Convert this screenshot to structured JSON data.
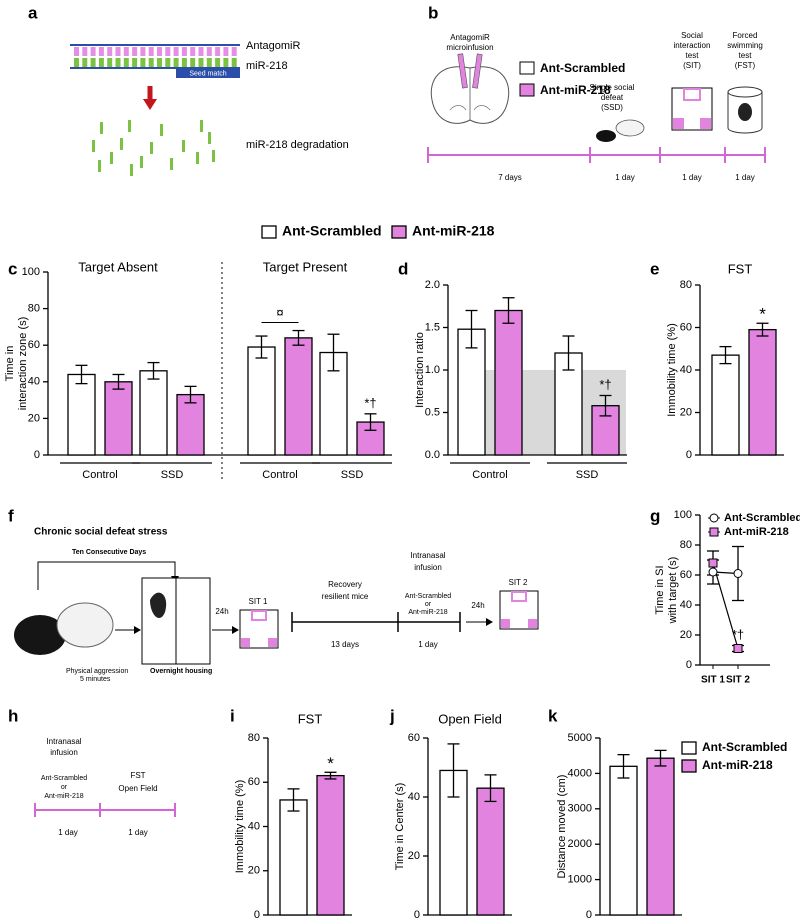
{
  "diagrams": {
    "a": {
      "label": "a",
      "strand_labels": [
        "AntagomiR",
        "miR-218"
      ],
      "seed": "Seed match",
      "result": "miR-218 degradation"
    },
    "b": {
      "label": "b",
      "infusion": [
        "AntagomiR",
        "microinfusion"
      ],
      "legend": [
        "Ant-Scrambled",
        "Ant-miR-218"
      ],
      "defeat": [
        "Single social",
        "defeat",
        "(SSD)"
      ],
      "sit": [
        "Social",
        "interaction",
        "test",
        "(SIT)"
      ],
      "fst": [
        "Forced",
        "swimming",
        "test",
        "(FST)"
      ],
      "durations": [
        "7 days",
        "1 day",
        "1 day",
        "1 day"
      ]
    },
    "f": {
      "label": "f",
      "title": "Chronic social defeat stress",
      "repeat": "Ten Consecutive Days",
      "aggression": [
        "Physical aggression",
        "5 minutes"
      ],
      "housing": "Overnight housing",
      "waits": [
        "24h",
        "24h"
      ],
      "tests": [
        "SIT 1",
        "SIT 2"
      ],
      "recovery": [
        "Recovery",
        "resilient mice"
      ],
      "recovery_duration": "13 days",
      "infusion": [
        "Intranasal",
        "infusion"
      ],
      "treatments": [
        "Ant-Scrambled",
        "or",
        "Ant-miR-218"
      ],
      "infusion_duration": "1 day"
    },
    "h": {
      "label": "h",
      "infusion": [
        "Intranasal",
        "infusion"
      ],
      "treatments": [
        "Ant-Scrambled",
        "or",
        "Ant-miR-218"
      ],
      "tests": [
        "FST",
        "Open Field"
      ],
      "durations": [
        "1 day",
        "1 day"
      ]
    }
  },
  "chart_data": [
    {
      "type": "bar",
      "label": "c",
      "facet_titles": [
        "Target Absent",
        "Target Present"
      ],
      "ylabel": [
        "Time in",
        "interaction zone (s)"
      ],
      "categories": [
        "Control",
        "SSD",
        "Control",
        "SSD"
      ],
      "ylim": [
        0,
        100
      ],
      "yticks": [
        0,
        20,
        40,
        60,
        80,
        100
      ],
      "series": [
        {
          "name": "Ant-Scrambled",
          "color": "#ffffff",
          "values": [
            44,
            46,
            59,
            56
          ],
          "errors": [
            5,
            4.5,
            6,
            10
          ]
        },
        {
          "name": "Ant-miR-218",
          "color": "#e283e0",
          "values": [
            40,
            33,
            64,
            18
          ],
          "errors": [
            4,
            4.5,
            4,
            4.5
          ]
        }
      ],
      "annotations": [
        {
          "text": "¤",
          "category": 2
        },
        {
          "text": "*†",
          "category": 3,
          "series": 1
        }
      ]
    },
    {
      "type": "bar",
      "label": "d",
      "ylabel": "Interaction ratio",
      "categories": [
        "Control",
        "SSD"
      ],
      "ylim": [
        0,
        2
      ],
      "yticks": [
        {
          "value": 0,
          "label": "0.0"
        },
        {
          "value": 0.5,
          "label": "0.5"
        },
        {
          "value": 1,
          "label": "1.0"
        },
        {
          "value": 1.5,
          "label": "1.5"
        },
        {
          "value": 2,
          "label": "2.0"
        }
      ],
      "reference": 1,
      "series": [
        {
          "color": "#ffffff",
          "values": [
            1.48,
            1.2
          ],
          "errors": [
            0.22,
            0.2
          ]
        },
        {
          "color": "#e283e0",
          "values": [
            1.7,
            0.58
          ],
          "errors": [
            0.15,
            0.12
          ]
        }
      ],
      "annotations": [
        {
          "text": "*†",
          "category": 1,
          "series": 1
        }
      ]
    },
    {
      "type": "bar",
      "label": "e",
      "title": "FST",
      "ylabel": "Immobility time (%)",
      "categories": [
        null
      ],
      "ylim": [
        0,
        80
      ],
      "yticks": [
        0,
        20,
        40,
        60,
        80
      ],
      "series": [
        {
          "color": "#ffffff",
          "values": [
            47
          ],
          "errors": [
            4
          ]
        },
        {
          "color": "#e283e0",
          "values": [
            59
          ],
          "errors": [
            3
          ]
        }
      ],
      "annotations": [
        {
          "text": "*",
          "category": 0,
          "series": 1
        }
      ]
    },
    {
      "type": "line",
      "label": "g",
      "ylabel": [
        "Time in SI",
        "with target (s)"
      ],
      "categories": [
        "SIT 1",
        "SIT 2"
      ],
      "ylim": [
        0,
        100
      ],
      "yticks": [
        0,
        20,
        40,
        60,
        80,
        100
      ],
      "series": [
        {
          "name": "Ant-Scrambled",
          "color": "#ffffff",
          "marker": "circle",
          "values": [
            62,
            61
          ],
          "errors": [
            8,
            18
          ]
        },
        {
          "name": "Ant-miR-218",
          "color": "#e283e0",
          "marker": "square",
          "values": [
            68,
            11
          ],
          "errors": [
            8,
            2
          ]
        }
      ],
      "annotations": [
        {
          "text": "*†",
          "category": 1,
          "series": 1
        }
      ]
    },
    {
      "type": "bar",
      "label": "i",
      "title": "FST",
      "ylabel": "Immobility time (%)",
      "categories": [
        null
      ],
      "ylim": [
        0,
        80
      ],
      "yticks": [
        0,
        20,
        40,
        60,
        80
      ],
      "series": [
        {
          "color": "#ffffff",
          "values": [
            52
          ],
          "errors": [
            5
          ]
        },
        {
          "color": "#e283e0",
          "values": [
            63
          ],
          "errors": [
            1.5
          ]
        }
      ],
      "annotations": [
        {
          "text": "*",
          "category": 0,
          "series": 1
        }
      ]
    },
    {
      "type": "bar",
      "label": "j",
      "title": "Open Field",
      "ylabel": "Time in Center (s)",
      "categories": [
        null
      ],
      "ylim": [
        0,
        60
      ],
      "yticks": [
        0,
        20,
        40,
        60
      ],
      "series": [
        {
          "color": "#ffffff",
          "values": [
            49
          ],
          "errors": [
            9
          ]
        },
        {
          "color": "#e283e0",
          "values": [
            43
          ],
          "errors": [
            4.5
          ]
        }
      ]
    },
    {
      "type": "bar",
      "label": "k",
      "ylabel": "Distance moved (cm)",
      "categories": [
        null
      ],
      "ylim": [
        0,
        5000
      ],
      "yticks": [
        0,
        1000,
        2000,
        3000,
        4000,
        5000
      ],
      "series": [
        {
          "name": "Ant-Scrambled",
          "color": "#ffffff",
          "values": [
            4200
          ],
          "errors": [
            330
          ]
        },
        {
          "name": "Ant-miR-218",
          "color": "#e283e0",
          "values": [
            4430
          ],
          "errors": [
            220
          ]
        }
      ]
    }
  ]
}
